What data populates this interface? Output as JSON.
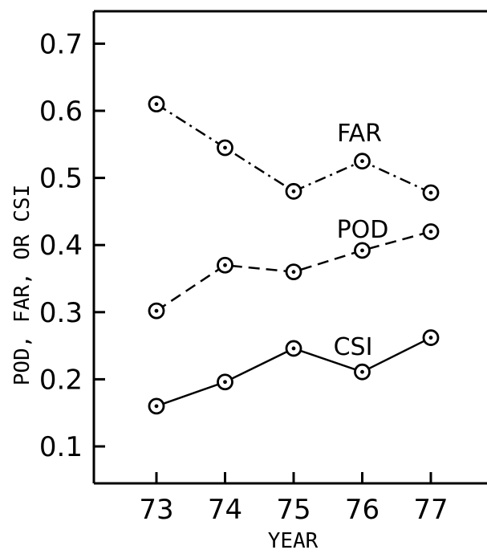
{
  "chart_data": {
    "type": "line",
    "x": [
      73,
      74,
      75,
      76,
      77
    ],
    "xlabel": "YEAR",
    "ylabel": "POD, FAR, OR CSI",
    "xticks": [
      "73",
      "74",
      "75",
      "76",
      "77"
    ],
    "yticks": [
      "0.1",
      "0.2",
      "0.3",
      "0.4",
      "0.5",
      "0.6",
      "0.7"
    ],
    "ylim": [
      0.0,
      0.75
    ],
    "xlim": [
      71.7,
      77.8
    ],
    "grid": false,
    "legend": "none",
    "series": [
      {
        "name": "FAR",
        "values": [
          0.61,
          0.545,
          0.48,
          0.525,
          0.478
        ],
        "line_style": "dash-dot",
        "marker": "circle-dot"
      },
      {
        "name": "POD",
        "values": [
          0.302,
          0.37,
          0.36,
          0.392,
          0.42
        ],
        "line_style": "dashed",
        "marker": "circle-dot"
      },
      {
        "name": "CSI",
        "values": [
          0.16,
          0.196,
          0.246,
          0.211,
          0.262
        ],
        "line_style": "solid",
        "marker": "circle-dot"
      }
    ],
    "colors": {
      "line": "#000000",
      "background": "#ffffff"
    }
  }
}
